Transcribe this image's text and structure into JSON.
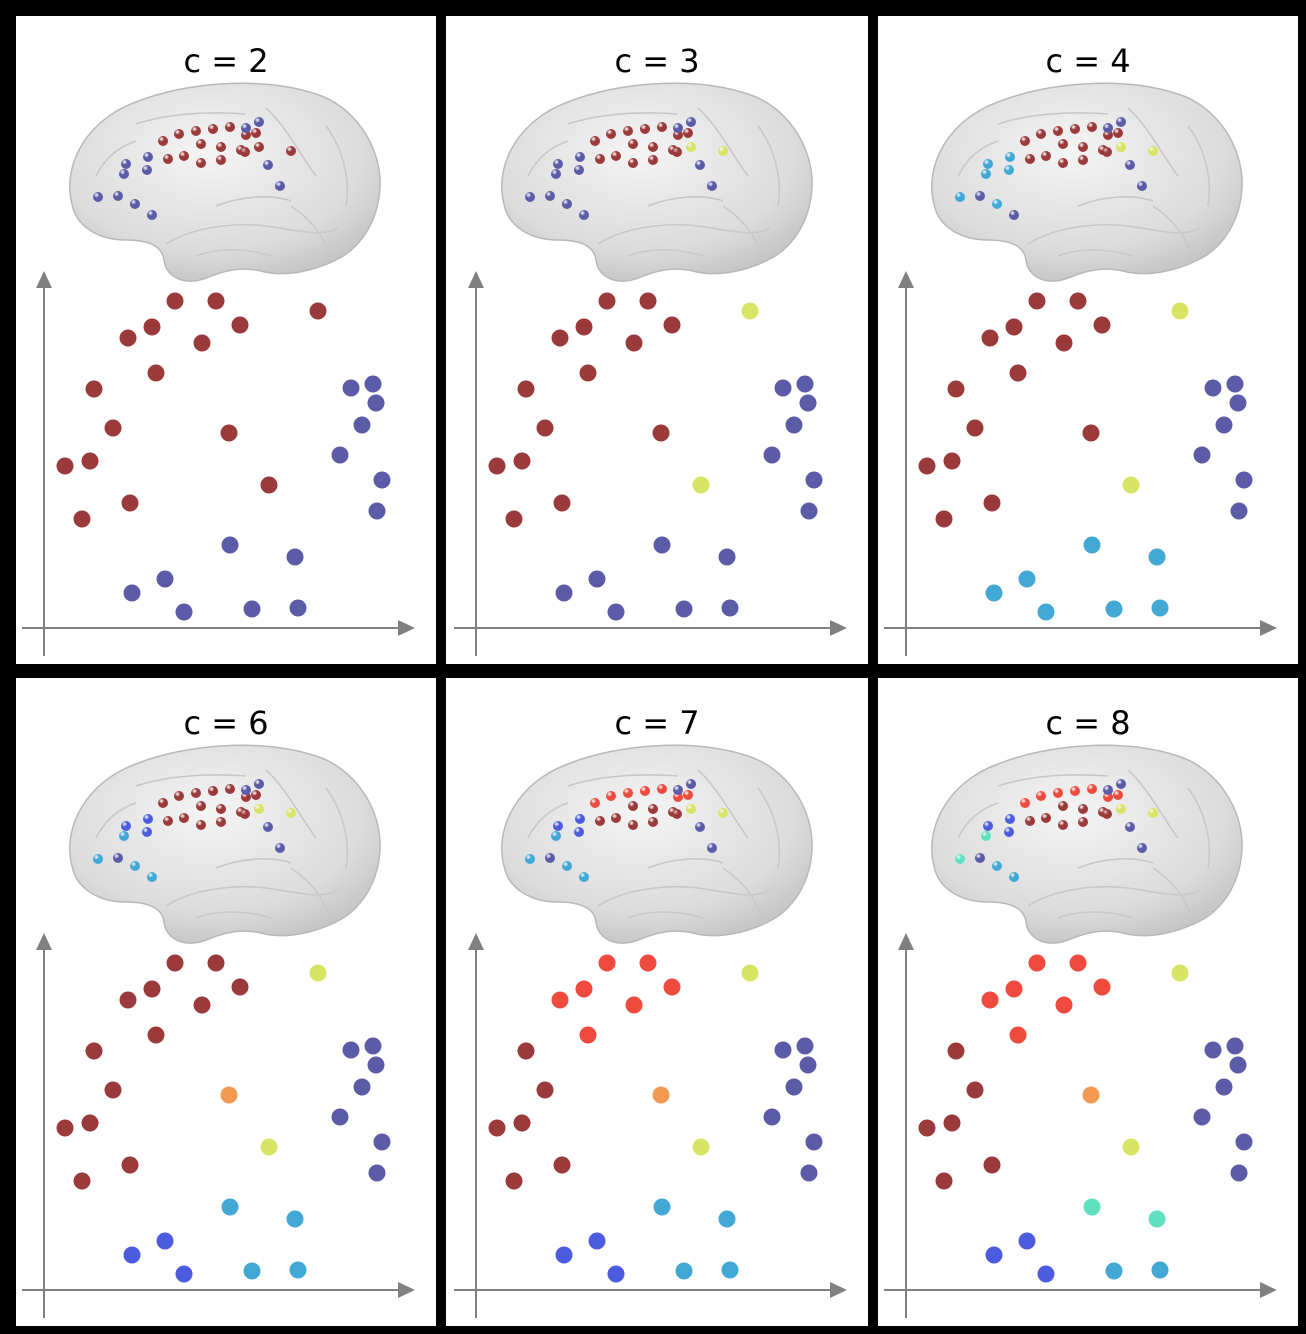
{
  "colors": {
    "dark_red": "#9b3a3a",
    "red": "#ee4a3e",
    "dark_blue": "#5b5ba8",
    "blue": "#4d5cdf",
    "cyan": "#42a8d6",
    "teal": "#5fe0c0",
    "yellow": "#d8e564",
    "orange": "#f39a52",
    "axis": "#808080"
  },
  "panels": [
    {
      "title": "c = 2"
    },
    {
      "title": "c = 3"
    },
    {
      "title": "c = 4"
    },
    {
      "title": "c = 6"
    },
    {
      "title": "c = 7"
    },
    {
      "title": "c = 8"
    }
  ]
}
